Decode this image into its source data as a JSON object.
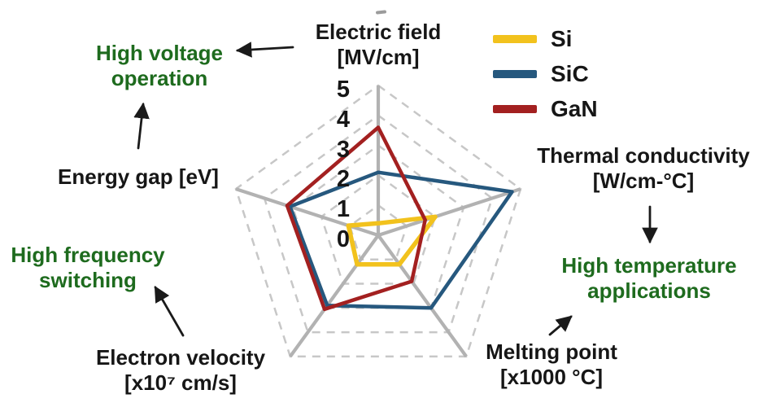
{
  "chart_data": {
    "type": "radar",
    "title": "",
    "scale": {
      "min": 0,
      "max": 5,
      "ticks": [
        5,
        4,
        3,
        2,
        1,
        0
      ],
      "levels": 5,
      "grid": "dashed-pentagons"
    },
    "axes": [
      {
        "id": "electric-field",
        "label": "Electric field",
        "unit": "[MV/cm]"
      },
      {
        "id": "thermal-conductivity",
        "label": "Thermal conductivity",
        "unit": "[W/cm-°C]"
      },
      {
        "id": "melting-point",
        "label": "Melting point",
        "unit": "[x1000 °C]"
      },
      {
        "id": "electron-velocity",
        "label": "Electron velocity",
        "unit": "[x10⁷ cm/s]"
      },
      {
        "id": "energy-gap",
        "label": "Energy gap [eV]",
        "unit": ""
      }
    ],
    "series": [
      {
        "name": "Si",
        "color": "#F2C21D",
        "values": [
          0.4,
          2.0,
          1.2,
          1.2,
          1.05
        ]
      },
      {
        "name": "SiC",
        "color": "#26587E",
        "values": [
          2.1,
          4.7,
          3.0,
          2.9,
          3.1
        ]
      },
      {
        "name": "GaN",
        "color": "#A32020",
        "values": [
          3.6,
          1.65,
          1.9,
          3.05,
          3.2
        ]
      }
    ],
    "legend_position": "top-right"
  },
  "annotations": {
    "color": "#1E6B1E",
    "high_voltage": {
      "line1": "High voltage",
      "line2": "operation"
    },
    "high_frequency": {
      "line1": "High frequency",
      "line2": "switching"
    },
    "high_temperature": {
      "line1": "High temperature",
      "line2": "applications"
    }
  },
  "colors": {
    "grid": "#C7C7C7",
    "spoke": "#B2B2B2",
    "arrow": "#1A1A1A",
    "text": "#161616"
  }
}
